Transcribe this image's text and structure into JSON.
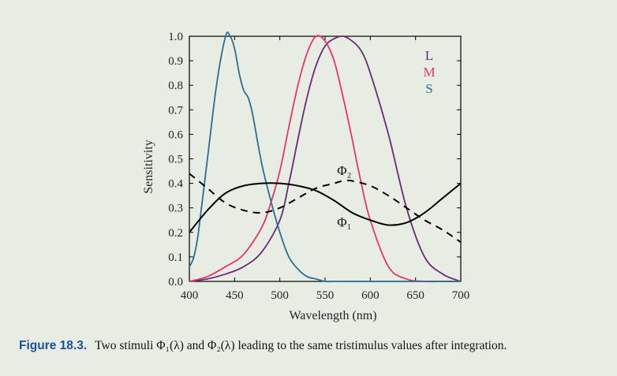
{
  "caption": {
    "label": "Figure 18.3.",
    "text": "Two stimuli Φ₁(λ) and Φ₂(λ) leading to the same tristimulus values after integration."
  },
  "chart_data": {
    "type": "line",
    "xlabel": "Wavelength (nm)",
    "ylabel": "Sensitivity",
    "xlim": [
      400,
      700
    ],
    "ylim": [
      0,
      1.0
    ],
    "xticks": [
      "400",
      "450",
      "500",
      "550",
      "600",
      "650",
      "700"
    ],
    "yticks": [
      "0.0",
      "0.1",
      "0.2",
      "0.3",
      "0.4",
      "0.5",
      "0.6",
      "0.7",
      "0.8",
      "0.9",
      "1.0"
    ],
    "grid": false,
    "legend_position": "top-right",
    "series": [
      {
        "name": "L",
        "color": "#6b2a78",
        "dash": "solid",
        "x": [
          400,
          420,
          440,
          460,
          480,
          500,
          510,
          520,
          530,
          540,
          550,
          560,
          570,
          580,
          590,
          600,
          620,
          640,
          660,
          680,
          700
        ],
        "y": [
          0.0,
          0.01,
          0.03,
          0.06,
          0.12,
          0.25,
          0.4,
          0.58,
          0.75,
          0.88,
          0.96,
          0.99,
          1.0,
          0.98,
          0.94,
          0.85,
          0.6,
          0.3,
          0.1,
          0.03,
          0.0
        ]
      },
      {
        "name": "M",
        "color": "#e8336b",
        "dash": "solid",
        "x": [
          400,
          420,
          440,
          460,
          480,
          490,
          500,
          510,
          520,
          530,
          540,
          550,
          560,
          570,
          580,
          590,
          600,
          620,
          640,
          660,
          680,
          700
        ],
        "y": [
          0.0,
          0.02,
          0.06,
          0.11,
          0.22,
          0.32,
          0.45,
          0.63,
          0.8,
          0.93,
          1.0,
          0.98,
          0.9,
          0.75,
          0.58,
          0.4,
          0.25,
          0.06,
          0.01,
          0.0,
          0.0,
          0.0
        ]
      },
      {
        "name": "S",
        "color": "#2a6e96",
        "dash": "solid",
        "x": [
          400,
          405,
          410,
          420,
          430,
          440,
          445,
          450,
          455,
          460,
          465,
          470,
          480,
          490,
          500,
          510,
          520,
          530,
          540,
          550,
          560,
          600,
          650,
          700
        ],
        "y": [
          0.06,
          0.1,
          0.2,
          0.5,
          0.8,
          1.0,
          1.0,
          0.95,
          0.85,
          0.78,
          0.75,
          0.68,
          0.48,
          0.33,
          0.2,
          0.1,
          0.05,
          0.02,
          0.01,
          0.0,
          0.0,
          0.0,
          0.0,
          0.0
        ]
      },
      {
        "name": "Φ₁",
        "color": "#000000",
        "dash": "solid",
        "x": [
          400,
          420,
          440,
          460,
          480,
          500,
          520,
          540,
          560,
          580,
          600,
          620,
          640,
          660,
          680,
          700
        ],
        "y": [
          0.2,
          0.29,
          0.36,
          0.39,
          0.4,
          0.4,
          0.39,
          0.37,
          0.33,
          0.28,
          0.25,
          0.23,
          0.24,
          0.28,
          0.34,
          0.4
        ]
      },
      {
        "name": "Φ₂",
        "color": "#000000",
        "dash": "dashed",
        "x": [
          400,
          420,
          440,
          460,
          480,
          500,
          520,
          540,
          560,
          570,
          580,
          600,
          620,
          640,
          660,
          680,
          700
        ],
        "y": [
          0.44,
          0.38,
          0.32,
          0.29,
          0.28,
          0.3,
          0.34,
          0.38,
          0.4,
          0.41,
          0.41,
          0.39,
          0.35,
          0.3,
          0.25,
          0.21,
          0.16
        ]
      }
    ],
    "annotations": [
      {
        "text": "Φ₂",
        "x": 572,
        "y": 0.45
      },
      {
        "text": "Φ₁",
        "x": 572,
        "y": 0.24
      }
    ]
  }
}
